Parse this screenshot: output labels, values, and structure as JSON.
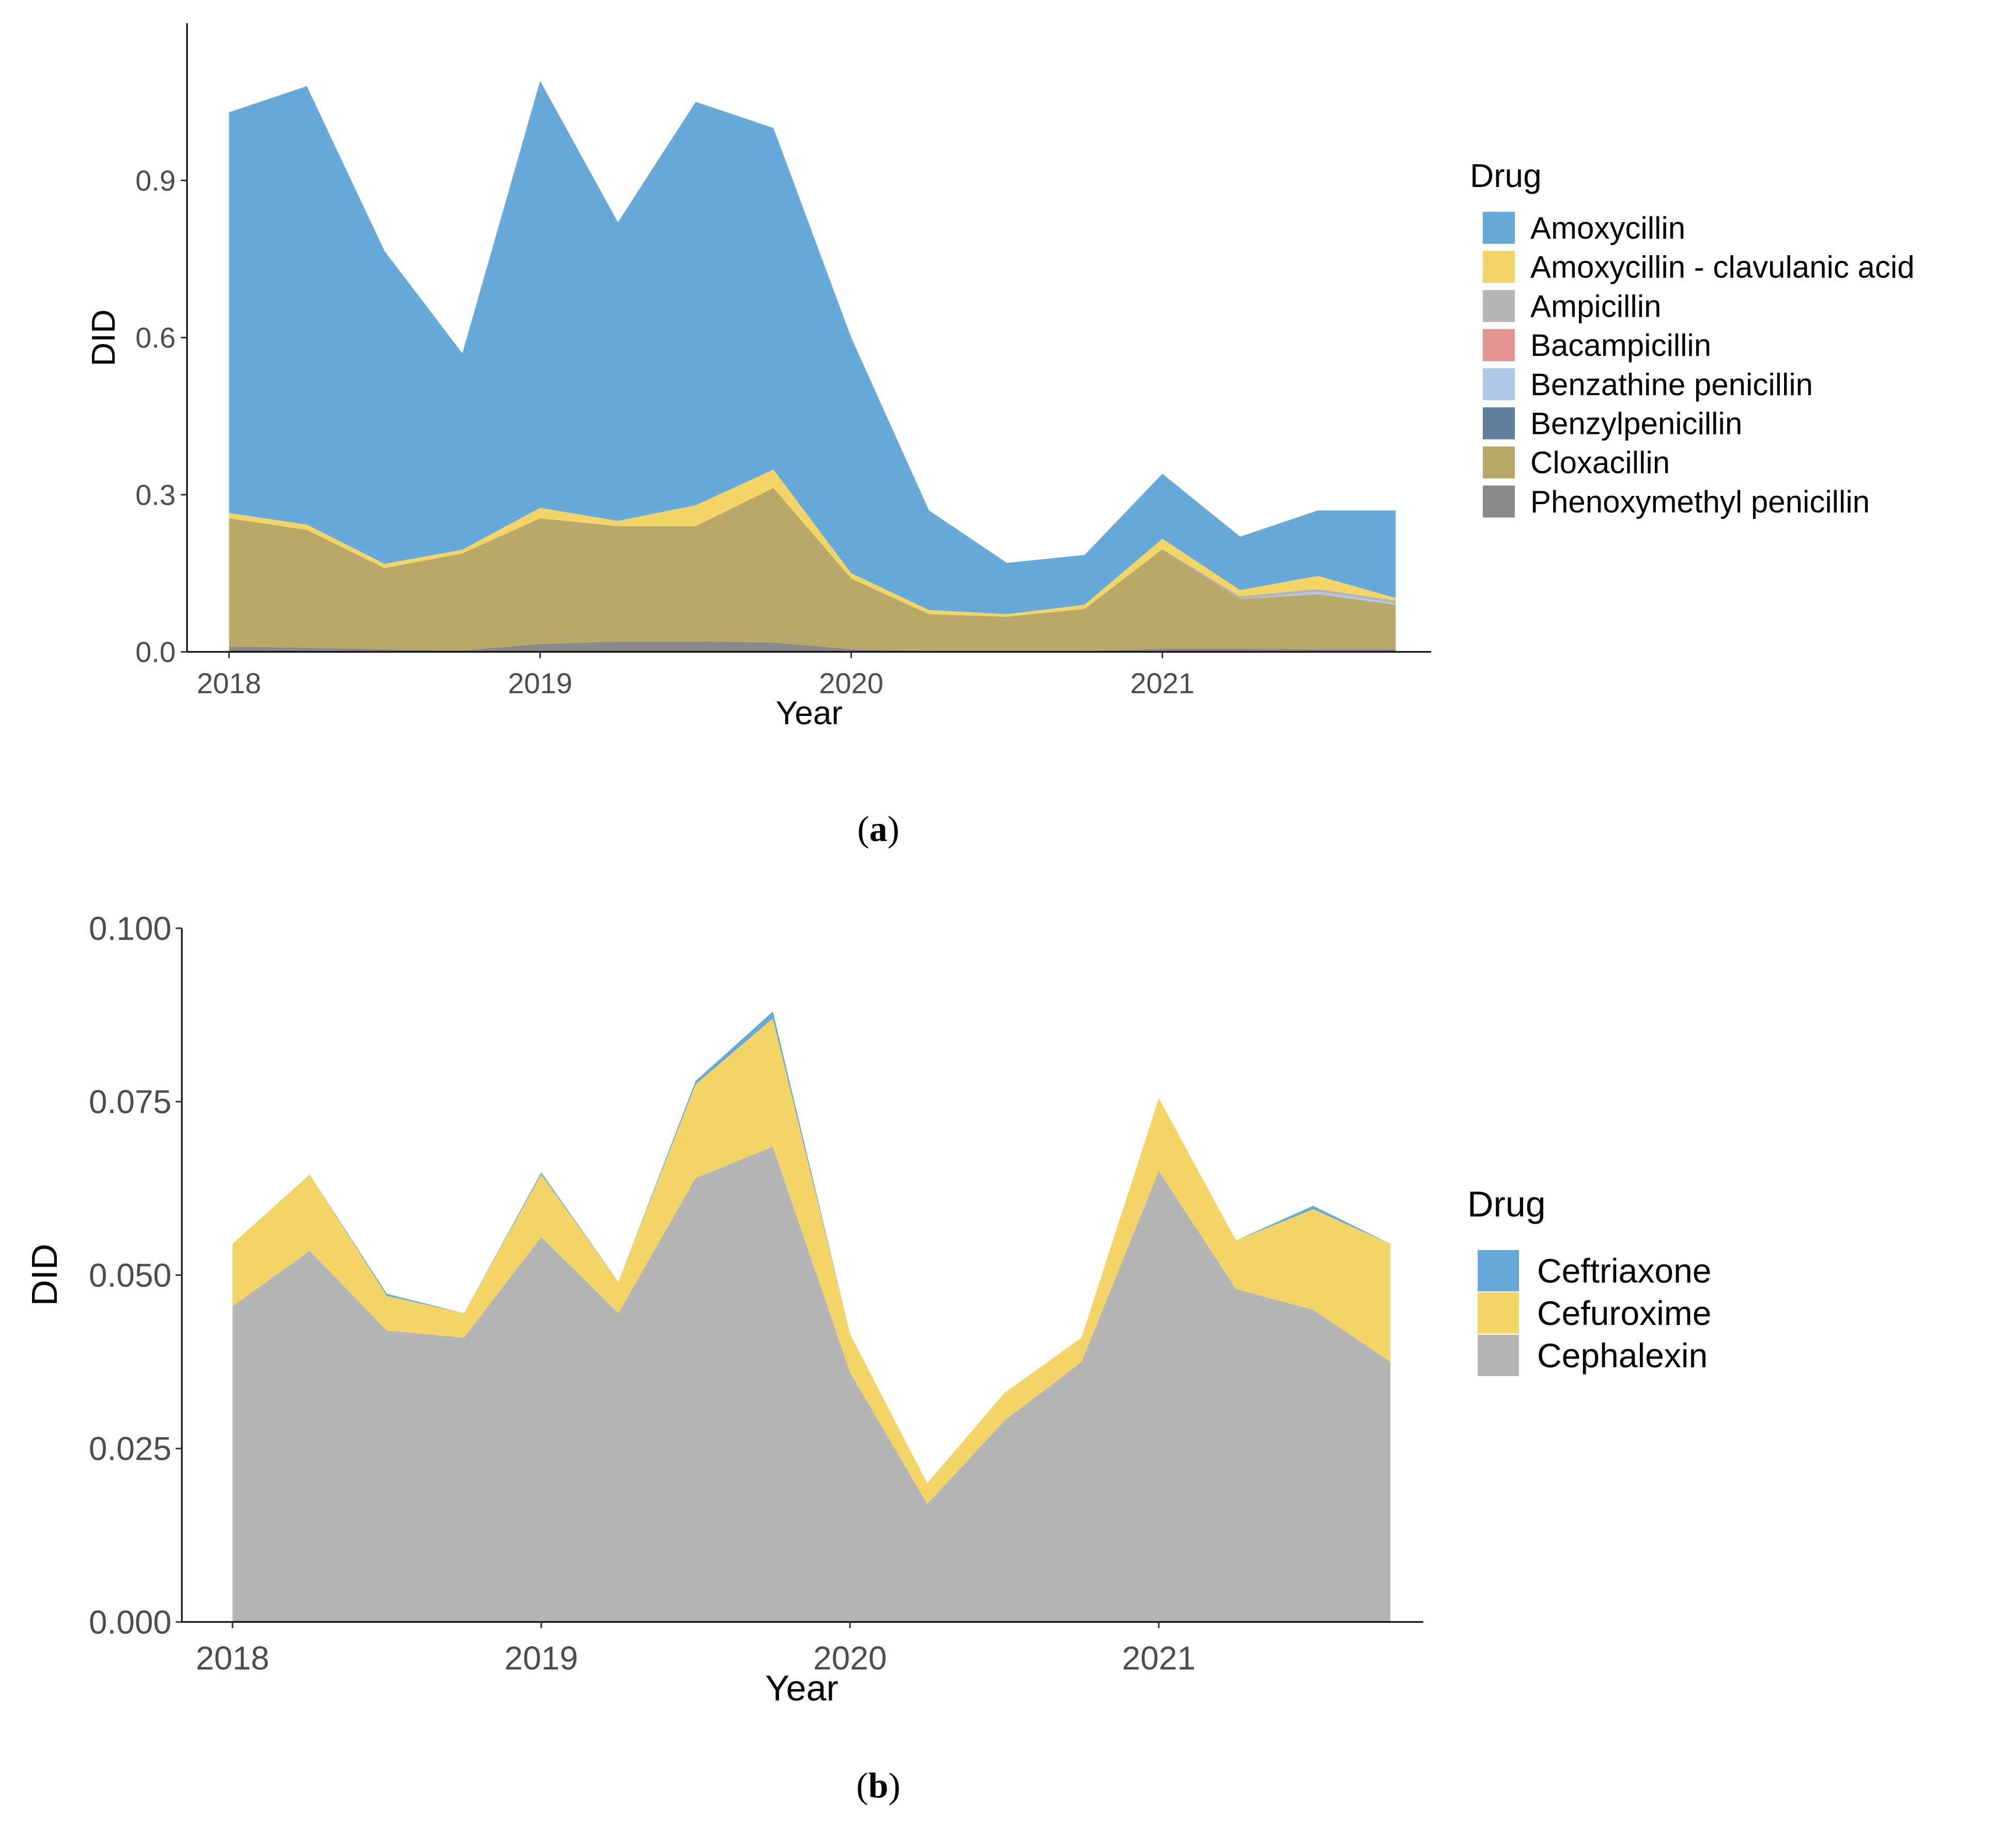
{
  "chart_data": [
    {
      "type": "area",
      "stacked": true,
      "caption": "a",
      "xlabel": "Year",
      "ylabel": "DID",
      "x_ticks": [
        "2018",
        "2019",
        "2020",
        "2021"
      ],
      "y_ticks": [
        "0.0",
        "0.3",
        "0.6",
        "0.9"
      ],
      "ylim": [
        0,
        1.2
      ],
      "x": [
        2018.0,
        2018.25,
        2018.5,
        2018.75,
        2019.0,
        2019.25,
        2019.5,
        2019.75,
        2020.0,
        2020.25,
        2020.5,
        2020.75,
        2021.0,
        2021.25,
        2021.5,
        2021.75
      ],
      "legend_title": "Drug",
      "legend_position": "right",
      "grid": false,
      "series": [
        {
          "name": "Phenoxymethyl penicillin",
          "color": "#8a8a8a",
          "values": [
            0.01,
            0.008,
            0.005,
            0.003,
            0.015,
            0.02,
            0.02,
            0.018,
            0.005,
            0.002,
            0.002,
            0.002,
            0.006,
            0.006,
            0.005,
            0.005
          ]
        },
        {
          "name": "Cloxacillin",
          "color": "#b8a96a",
          "values": [
            0.245,
            0.225,
            0.155,
            0.185,
            0.24,
            0.22,
            0.22,
            0.295,
            0.135,
            0.07,
            0.065,
            0.08,
            0.19,
            0.095,
            0.105,
            0.085
          ]
        },
        {
          "name": "Benzylpenicillin",
          "color": "#617e9b",
          "values": [
            0,
            0,
            0,
            0,
            0,
            0,
            0,
            0,
            0,
            0,
            0,
            0,
            0,
            0,
            0,
            0
          ]
        },
        {
          "name": "Benzathine penicillin",
          "color": "#aec7e8",
          "values": [
            0,
            0,
            0,
            0,
            0,
            0,
            0,
            0,
            0,
            0,
            0,
            0,
            0,
            0,
            0.005,
            0.003
          ]
        },
        {
          "name": "Bacampicillin",
          "color": "#e0938f",
          "values": [
            0,
            0,
            0,
            0,
            0,
            0,
            0,
            0,
            0,
            0,
            0,
            0,
            0,
            0,
            0,
            0
          ]
        },
        {
          "name": "Ampicillin",
          "color": "#b5b5b5",
          "values": [
            0,
            0,
            0,
            0,
            0,
            0,
            0,
            0,
            0,
            0,
            0,
            0,
            0,
            0.005,
            0.005,
            0.005
          ]
        },
        {
          "name": "Amoxycillin - clavulanic acid",
          "color": "#f2d566",
          "values": [
            0.01,
            0.01,
            0.008,
            0.007,
            0.02,
            0.01,
            0.04,
            0.035,
            0.01,
            0.008,
            0.005,
            0.008,
            0.02,
            0.012,
            0.025,
            0.005
          ]
        },
        {
          "name": "Amoxycillin",
          "color": "#67a9d8",
          "values": [
            0.765,
            0.837,
            0.597,
            0.375,
            0.815,
            0.57,
            0.77,
            0.652,
            0.45,
            0.19,
            0.098,
            0.095,
            0.124,
            0.102,
            0.125,
            0.167
          ]
        }
      ],
      "legend_order": [
        "Amoxycillin",
        "Amoxycillin - clavulanic acid",
        "Ampicillin",
        "Bacampicillin",
        "Benzathine penicillin",
        "Benzylpenicillin",
        "Cloxacillin",
        "Phenoxymethyl penicillin"
      ]
    },
    {
      "type": "area",
      "stacked": true,
      "caption": "b",
      "xlabel": "Year",
      "ylabel": "DID",
      "x_ticks": [
        "2018",
        "2019",
        "2020",
        "2021"
      ],
      "y_ticks": [
        "0.000",
        "0.025",
        "0.050",
        "0.075",
        "0.100"
      ],
      "ylim": [
        0,
        0.1
      ],
      "x": [
        2018.0,
        2018.25,
        2018.5,
        2018.75,
        2019.0,
        2019.25,
        2019.5,
        2019.75,
        2020.0,
        2020.25,
        2020.5,
        2020.75,
        2021.0,
        2021.25,
        2021.5,
        2021.75
      ],
      "legend_title": "Drug",
      "legend_position": "right",
      "grid": false,
      "series": [
        {
          "name": "Cephalexin",
          "color": "#b5b5b5",
          "values": [
            0.0455,
            0.0535,
            0.042,
            0.041,
            0.0555,
            0.0445,
            0.064,
            0.0685,
            0.036,
            0.017,
            0.029,
            0.0375,
            0.065,
            0.048,
            0.045,
            0.0375
          ]
        },
        {
          "name": "Cefuroxime",
          "color": "#f2d566",
          "values": [
            0.009,
            0.011,
            0.005,
            0.0035,
            0.009,
            0.0045,
            0.0135,
            0.0185,
            0.0055,
            0.003,
            0.004,
            0.0035,
            0.0105,
            0.007,
            0.0145,
            0.017
          ]
        },
        {
          "name": "Ceftriaxone",
          "color": "#67a9d8",
          "values": [
            0,
            0,
            0.0003,
            0,
            0.0003,
            0,
            0.0005,
            0.001,
            0,
            0,
            0,
            0,
            0,
            0,
            0.0005,
            0
          ]
        }
      ],
      "legend_order": [
        "Ceftriaxone",
        "Cefuroxime",
        "Cephalexin"
      ]
    }
  ]
}
